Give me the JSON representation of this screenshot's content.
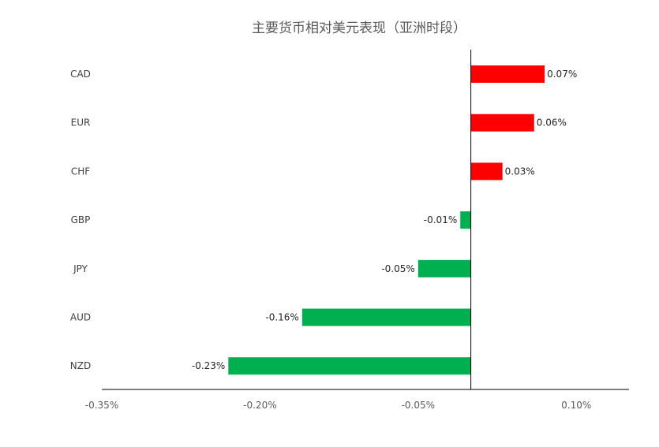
{
  "chart_data": {
    "type": "bar",
    "orientation": "horizontal",
    "title": "主要货币相对美元表现（亚洲时段）",
    "categories": [
      "CAD",
      "EUR",
      "CHF",
      "GBP",
      "JPY",
      "AUD",
      "NZD"
    ],
    "values": [
      0.07,
      0.06,
      0.03,
      -0.01,
      -0.05,
      -0.16,
      -0.23
    ],
    "value_labels": [
      "0.07%",
      "0.06%",
      "0.03%",
      "-0.01%",
      "-0.05%",
      "-0.16%",
      "-0.23%"
    ],
    "xlim": [
      -0.35,
      0.15
    ],
    "xticks": [
      -0.35,
      -0.2,
      -0.05,
      0.1
    ],
    "xtick_labels": [
      "-0.35%",
      "-0.20%",
      "-0.05%",
      "0.10%"
    ],
    "colors": {
      "positive": "#ff0000",
      "negative": "#00b050"
    },
    "grid": false,
    "legend": "none"
  }
}
